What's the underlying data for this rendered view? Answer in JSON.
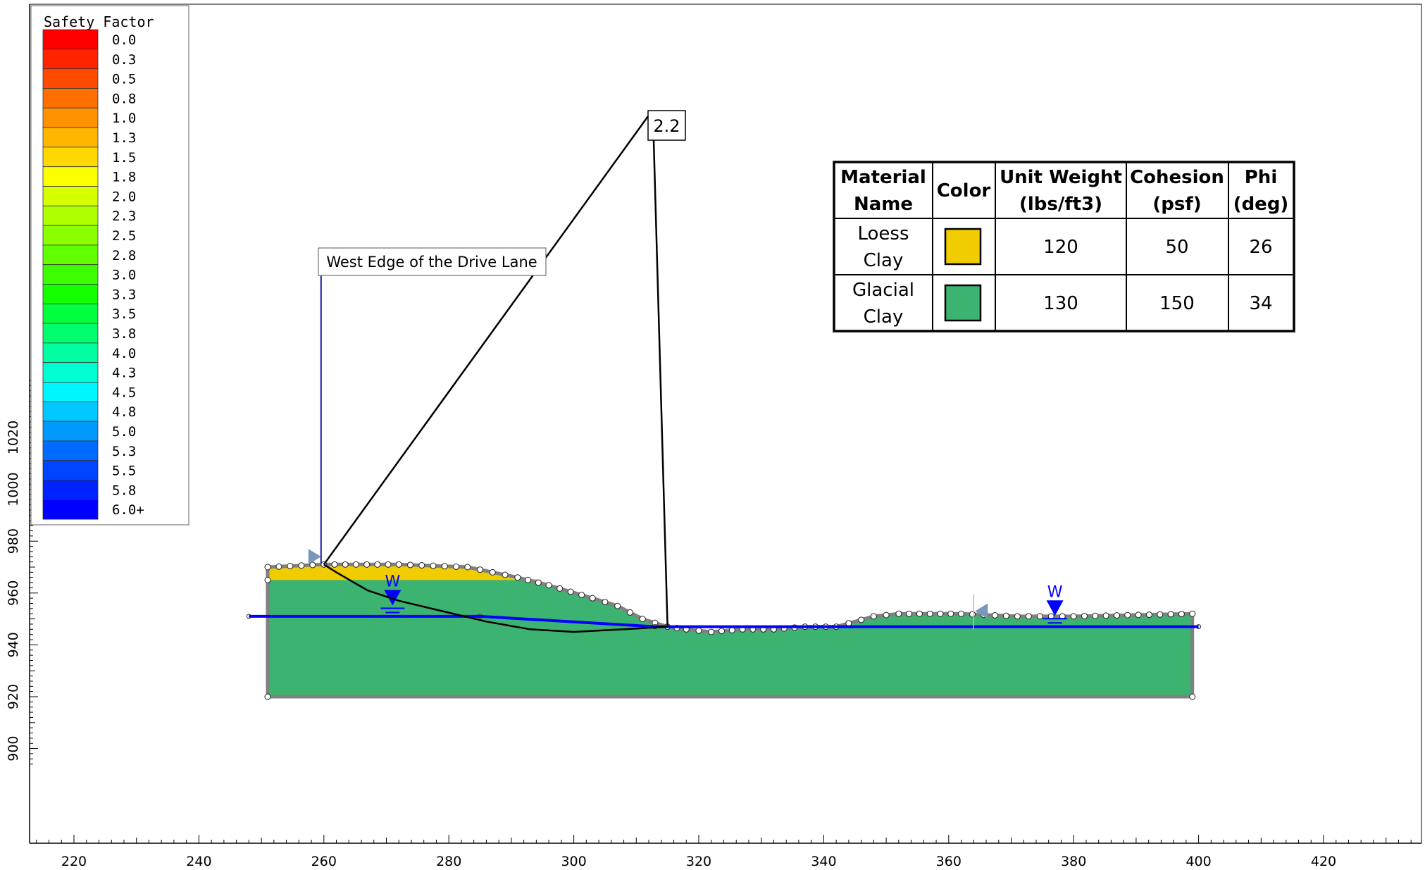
{
  "legend": {
    "title": "Safety Factor",
    "items": [
      {
        "label": "0.0",
        "color": "#ff0000"
      },
      {
        "label": "0.3",
        "color": "#ff2400"
      },
      {
        "label": "0.5",
        "color": "#ff4a00"
      },
      {
        "label": "0.8",
        "color": "#ff6e00"
      },
      {
        "label": "1.0",
        "color": "#ff9200"
      },
      {
        "label": "1.3",
        "color": "#ffb600"
      },
      {
        "label": "1.5",
        "color": "#ffd800"
      },
      {
        "label": "1.8",
        "color": "#fcff00"
      },
      {
        "label": "2.0",
        "color": "#d6ff00"
      },
      {
        "label": "2.3",
        "color": "#b0ff00"
      },
      {
        "label": "2.5",
        "color": "#8aff00"
      },
      {
        "label": "2.8",
        "color": "#62ff00"
      },
      {
        "label": "3.0",
        "color": "#3cff00"
      },
      {
        "label": "3.3",
        "color": "#14ff00"
      },
      {
        "label": "3.5",
        "color": "#00ff3c"
      },
      {
        "label": "3.8",
        "color": "#00ff6e"
      },
      {
        "label": "4.0",
        "color": "#00ffa0"
      },
      {
        "label": "4.3",
        "color": "#00ffd2"
      },
      {
        "label": "4.5",
        "color": "#00f6ff"
      },
      {
        "label": "4.8",
        "color": "#00c8ff"
      },
      {
        "label": "5.0",
        "color": "#009aff"
      },
      {
        "label": "5.3",
        "color": "#006cff"
      },
      {
        "label": "5.5",
        "color": "#0044ff"
      },
      {
        "label": "5.8",
        "color": "#0022ff"
      },
      {
        "label": "6.0+",
        "color": "#0000ff"
      }
    ]
  },
  "axes": {
    "x_ticks": [
      "220",
      "240",
      "260",
      "280",
      "300",
      "320",
      "340",
      "360",
      "380",
      "400",
      "420"
    ],
    "y_ticks": [
      "900",
      "920",
      "940",
      "960",
      "980",
      "1000",
      "1020"
    ]
  },
  "model": {
    "x": [
      251,
      399
    ],
    "y": [
      920,
      971
    ],
    "loess_clay_color": "#f0cc00",
    "glacial_clay_color": "#3cb371",
    "boundary_color": "#808080",
    "water_color": "#0000ff",
    "ground_surface": [
      [
        251,
        970
      ],
      [
        260,
        971
      ],
      [
        272,
        971
      ],
      [
        283,
        970
      ],
      [
        291,
        966
      ],
      [
        296,
        963
      ],
      [
        303,
        958
      ],
      [
        307,
        955
      ],
      [
        311,
        950
      ],
      [
        315,
        947
      ],
      [
        318,
        946
      ],
      [
        322,
        945
      ],
      [
        327,
        946
      ],
      [
        332,
        946
      ],
      [
        337,
        947
      ],
      [
        342,
        947
      ],
      [
        348,
        951
      ],
      [
        352,
        952
      ],
      [
        362,
        952
      ],
      [
        371,
        951
      ],
      [
        380,
        951
      ],
      [
        399,
        952
      ]
    ],
    "loess_base": [
      [
        251,
        965
      ],
      [
        295,
        965
      ]
    ],
    "water_table": [
      [
        248,
        951
      ],
      [
        285,
        951
      ],
      [
        313,
        947
      ],
      [
        400,
        947
      ]
    ]
  },
  "slip_surface": {
    "points": [
      [
        260,
        971
      ],
      [
        262,
        968
      ],
      [
        267,
        961
      ],
      [
        272,
        957
      ],
      [
        279,
        953
      ],
      [
        286,
        949
      ],
      [
        293,
        946
      ],
      [
        300,
        945
      ],
      [
        308,
        946
      ],
      [
        315,
        947
      ]
    ],
    "factor_label": "2.2",
    "color": "#000000"
  },
  "annotation": {
    "text": "West Edge of the Drive Lane"
  },
  "water_markers": {
    "label": "W",
    "positions": [
      [
        271,
        953
      ],
      [
        377,
        949
      ]
    ]
  },
  "table": {
    "headers": [
      {
        "line1": "Material",
        "line2": "Name"
      },
      {
        "line1": "Color",
        "line2": ""
      },
      {
        "line1": "Unit Weight",
        "line2": "(lbs/ft3)"
      },
      {
        "line1": "Cohesion",
        "line2": "(psf)"
      },
      {
        "line1": "Phi",
        "line2": "(deg)"
      }
    ],
    "rows": [
      {
        "name1": "Loess",
        "name2": "Clay",
        "color": "#f0cc00",
        "unit_weight": "120",
        "cohesion": "50",
        "phi": "26"
      },
      {
        "name1": "Glacial",
        "name2": "Clay",
        "color": "#3cb371",
        "unit_weight": "130",
        "cohesion": "150",
        "phi": "34"
      }
    ]
  }
}
